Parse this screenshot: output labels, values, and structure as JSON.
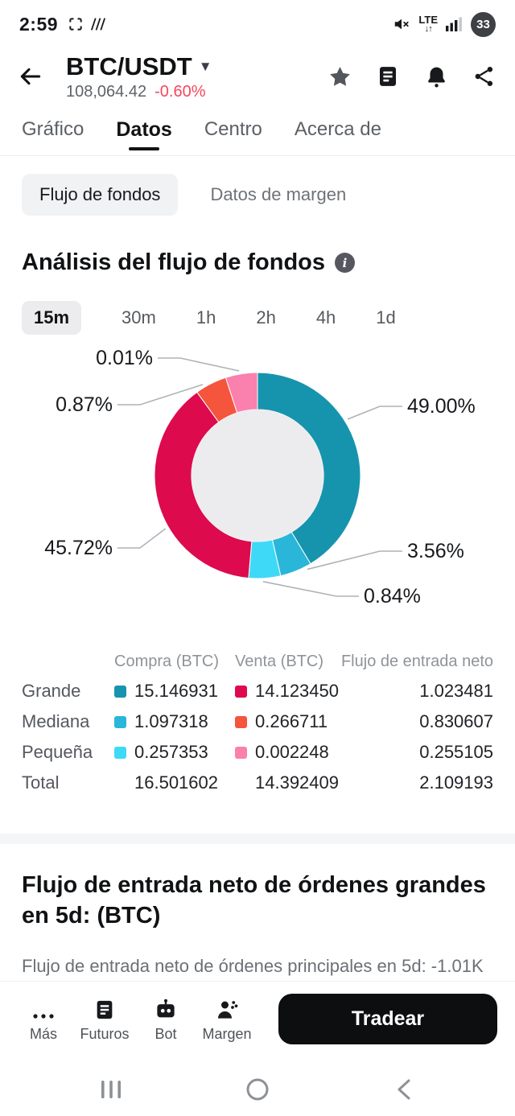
{
  "status_bar": {
    "time": "2:59",
    "network": "LTE",
    "battery": "33"
  },
  "header": {
    "pair": "BTC/USDT",
    "price": "108,064.42",
    "change": "-0.60%"
  },
  "colors": {
    "down_red": "#f6465d",
    "accent_black": "#0d0e10"
  },
  "tabs": [
    {
      "label": "Gráfico",
      "active": false
    },
    {
      "label": "Datos",
      "active": true
    },
    {
      "label": "Centro",
      "active": false
    },
    {
      "label": "Acerca de",
      "active": false
    }
  ],
  "subtabs": [
    {
      "label": "Flujo de fondos",
      "active": true
    },
    {
      "label": "Datos de margen",
      "active": false
    }
  ],
  "analysis": {
    "title": "Análisis del flujo de fondos"
  },
  "timeframes": [
    {
      "label": "15m",
      "active": true
    },
    {
      "label": "30m",
      "active": false
    },
    {
      "label": "1h",
      "active": false
    },
    {
      "label": "2h",
      "active": false
    },
    {
      "label": "4h",
      "active": false
    },
    {
      "label": "1d",
      "active": false
    }
  ],
  "chart_data": {
    "type": "pie",
    "donut": true,
    "title": "Análisis del flujo de fondos",
    "timeframe": "15m",
    "legend_position": "none",
    "segments": [
      {
        "name": "compra-grande",
        "label": "49.00%",
        "value": 49.0,
        "color": "#1794ad"
      },
      {
        "name": "compra-mediana",
        "label": "3.56%",
        "value": 3.56,
        "color": "#29b6d9"
      },
      {
        "name": "compra-pequena",
        "label": "0.84%",
        "value": 0.84,
        "color": "#3fd9f8"
      },
      {
        "name": "venta-grande",
        "label": "45.72%",
        "value": 45.72,
        "color": "#dd0a4e"
      },
      {
        "name": "venta-mediana",
        "label": "0.87%",
        "value": 0.87,
        "color": "#f4553c"
      },
      {
        "name": "venta-pequena",
        "label": "0.01%",
        "value": 0.01,
        "color": "#fa80ae"
      }
    ]
  },
  "table": {
    "headers": {
      "compra": "Compra (BTC)",
      "venta": "Venta (BTC)",
      "neto": "Flujo de entrada neto"
    },
    "rows": [
      {
        "label": "Grande",
        "compra": "15.146931",
        "venta": "14.123450",
        "neto": "1.023481",
        "compra_color": "#1794ad",
        "venta_color": "#dd0a4e"
      },
      {
        "label": "Mediana",
        "compra": "1.097318",
        "venta": "0.266711",
        "neto": "0.830607",
        "compra_color": "#29b6d9",
        "venta_color": "#f4553c"
      },
      {
        "label": "Pequeña",
        "compra": "0.257353",
        "venta": "0.002248",
        "neto": "0.255105",
        "compra_color": "#3fd9f8",
        "venta_color": "#fa80ae"
      },
      {
        "label": "Total",
        "compra": "16.501602",
        "venta": "14.392409",
        "neto": "2.109193"
      }
    ]
  },
  "section2": {
    "title": "Flujo de entrada neto de órdenes grandes en 5d: (BTC)",
    "body": "Flujo de entrada neto de órdenes principales en 5d: -1.01K"
  },
  "bottom_bar": {
    "items": [
      {
        "label": "Más"
      },
      {
        "label": "Futuros"
      },
      {
        "label": "Bot"
      },
      {
        "label": "Margen"
      }
    ],
    "cta": "Tradear"
  }
}
